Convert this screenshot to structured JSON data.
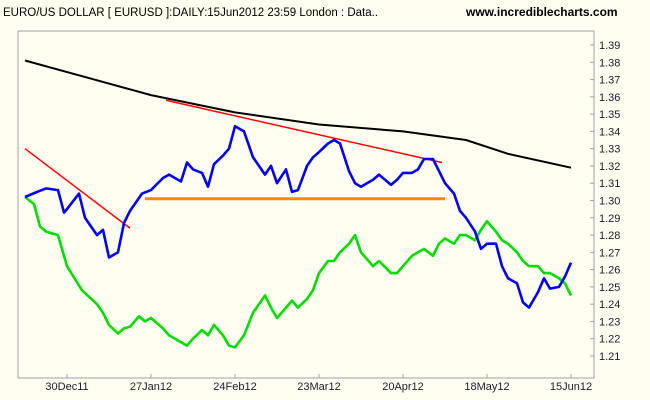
{
  "header": {
    "title": "EURO/US DOLLAR [ EURUSD ]:DAILY:15Jun2012 23:59 London : Data..",
    "source": "www.incrediblecharts.com"
  },
  "chart_data": {
    "type": "line",
    "title": "EURO/US DOLLAR [ EURUSD ]:DAILY:15Jun2012 23:59 London : Data..",
    "x_range": [
      "2011-12-16",
      "2012-06-15"
    ],
    "ylim": [
      1.2,
      1.4
    ],
    "y_ticks": [
      "1.39",
      "1.38",
      "1.37",
      "1.36",
      "1.35",
      "1.34",
      "1.33",
      "1.32",
      "1.31",
      "1.30",
      "1.29",
      "1.28",
      "1.27",
      "1.26",
      "1.25",
      "1.24",
      "1.23",
      "1.22",
      "1.21"
    ],
    "x_ticks": [
      {
        "label": "30Dec11",
        "date": "2011-12-30"
      },
      {
        "label": "27Jan12",
        "date": "2012-01-27"
      },
      {
        "label": "24Feb12",
        "date": "2012-02-24"
      },
      {
        "label": "23Mar12",
        "date": "2012-03-23"
      },
      {
        "label": "20Apr12",
        "date": "2012-04-20"
      },
      {
        "label": "18May12",
        "date": "2012-05-18"
      },
      {
        "label": "15Jun12",
        "date": "2012-06-15"
      }
    ],
    "grid": false,
    "series": [
      {
        "color": "#0000ff",
        "points": [
          [
            "2011-12-16",
            1.302
          ],
          [
            "2011-12-20",
            1.305
          ],
          [
            "2011-12-23",
            1.307
          ],
          [
            "2011-12-27",
            1.306
          ],
          [
            "2011-12-29",
            1.293
          ],
          [
            "2011-12-30",
            1.295
          ],
          [
            "2012-01-03",
            1.304
          ],
          [
            "2012-01-05",
            1.29
          ],
          [
            "2012-01-09",
            1.28
          ],
          [
            "2012-01-11",
            1.283
          ],
          [
            "2012-01-13",
            1.267
          ],
          [
            "2012-01-16",
            1.27
          ],
          [
            "2012-01-18",
            1.287
          ],
          [
            "2012-01-20",
            1.294
          ],
          [
            "2012-01-24",
            1.304
          ],
          [
            "2012-01-27",
            1.306
          ],
          [
            "2012-01-31",
            1.313
          ],
          [
            "2012-02-02",
            1.315
          ],
          [
            "2012-02-06",
            1.311
          ],
          [
            "2012-02-08",
            1.322
          ],
          [
            "2012-02-10",
            1.318
          ],
          [
            "2012-02-13",
            1.316
          ],
          [
            "2012-02-15",
            1.308
          ],
          [
            "2012-02-17",
            1.321
          ],
          [
            "2012-02-20",
            1.326
          ],
          [
            "2012-02-22",
            1.33
          ],
          [
            "2012-02-24",
            1.343
          ],
          [
            "2012-02-27",
            1.34
          ],
          [
            "2012-03-01",
            1.325
          ],
          [
            "2012-03-05",
            1.315
          ],
          [
            "2012-03-07",
            1.32
          ],
          [
            "2012-03-09",
            1.31
          ],
          [
            "2012-03-12",
            1.318
          ],
          [
            "2012-03-14",
            1.305
          ],
          [
            "2012-03-16",
            1.306
          ],
          [
            "2012-03-19",
            1.32
          ],
          [
            "2012-03-21",
            1.325
          ],
          [
            "2012-03-23",
            1.328
          ],
          [
            "2012-03-26",
            1.333
          ],
          [
            "2012-03-28",
            1.335
          ],
          [
            "2012-03-30",
            1.333
          ],
          [
            "2012-04-02",
            1.317
          ],
          [
            "2012-04-04",
            1.31
          ],
          [
            "2012-04-06",
            1.308
          ],
          [
            "2012-04-10",
            1.312
          ],
          [
            "2012-04-12",
            1.315
          ],
          [
            "2012-04-16",
            1.309
          ],
          [
            "2012-04-18",
            1.312
          ],
          [
            "2012-04-20",
            1.316
          ],
          [
            "2012-04-23",
            1.316
          ],
          [
            "2012-04-25",
            1.318
          ],
          [
            "2012-04-27",
            1.324
          ],
          [
            "2012-04-30",
            1.324
          ],
          [
            "2012-05-02",
            1.317
          ],
          [
            "2012-05-04",
            1.31
          ],
          [
            "2012-05-07",
            1.304
          ],
          [
            "2012-05-09",
            1.294
          ],
          [
            "2012-05-11",
            1.29
          ],
          [
            "2012-05-14",
            1.282
          ],
          [
            "2012-05-16",
            1.272
          ],
          [
            "2012-05-18",
            1.275
          ],
          [
            "2012-05-21",
            1.275
          ],
          [
            "2012-05-23",
            1.262
          ],
          [
            "2012-05-25",
            1.255
          ],
          [
            "2012-05-28",
            1.252
          ],
          [
            "2012-05-30",
            1.241
          ],
          [
            "2012-06-01",
            1.238
          ],
          [
            "2012-06-04",
            1.247
          ],
          [
            "2012-06-06",
            1.255
          ],
          [
            "2012-06-08",
            1.249
          ],
          [
            "2012-06-11",
            1.25
          ],
          [
            "2012-06-13",
            1.256
          ],
          [
            "2012-06-15",
            1.264
          ]
        ]
      },
      {
        "color": "#00dd00",
        "points": [
          [
            "2011-12-16",
            1.302
          ],
          [
            "2011-12-19",
            1.298
          ],
          [
            "2011-12-21",
            1.285
          ],
          [
            "2011-12-23",
            1.282
          ],
          [
            "2011-12-27",
            1.28
          ],
          [
            "2011-12-30",
            1.262
          ],
          [
            "2012-01-04",
            1.248
          ],
          [
            "2012-01-09",
            1.24
          ],
          [
            "2012-01-11",
            1.235
          ],
          [
            "2012-01-13",
            1.228
          ],
          [
            "2012-01-16",
            1.223
          ],
          [
            "2012-01-18",
            1.226
          ],
          [
            "2012-01-20",
            1.227
          ],
          [
            "2012-01-23",
            1.233
          ],
          [
            "2012-01-25",
            1.23
          ],
          [
            "2012-01-27",
            1.232
          ],
          [
            "2012-01-31",
            1.226
          ],
          [
            "2012-02-02",
            1.222
          ],
          [
            "2012-02-06",
            1.218
          ],
          [
            "2012-02-08",
            1.216
          ],
          [
            "2012-02-10",
            1.22
          ],
          [
            "2012-02-13",
            1.225
          ],
          [
            "2012-02-15",
            1.222
          ],
          [
            "2012-02-17",
            1.228
          ],
          [
            "2012-02-20",
            1.222
          ],
          [
            "2012-02-22",
            1.216
          ],
          [
            "2012-02-24",
            1.215
          ],
          [
            "2012-02-27",
            1.222
          ],
          [
            "2012-03-01",
            1.235
          ],
          [
            "2012-03-05",
            1.245
          ],
          [
            "2012-03-07",
            1.238
          ],
          [
            "2012-03-09",
            1.232
          ],
          [
            "2012-03-12",
            1.238
          ],
          [
            "2012-03-14",
            1.242
          ],
          [
            "2012-03-16",
            1.238
          ],
          [
            "2012-03-19",
            1.243
          ],
          [
            "2012-03-21",
            1.248
          ],
          [
            "2012-03-23",
            1.258
          ],
          [
            "2012-03-26",
            1.265
          ],
          [
            "2012-03-28",
            1.265
          ],
          [
            "2012-03-30",
            1.27
          ],
          [
            "2012-04-02",
            1.275
          ],
          [
            "2012-04-04",
            1.28
          ],
          [
            "2012-04-06",
            1.27
          ],
          [
            "2012-04-10",
            1.262
          ],
          [
            "2012-04-12",
            1.265
          ],
          [
            "2012-04-16",
            1.258
          ],
          [
            "2012-04-18",
            1.258
          ],
          [
            "2012-04-20",
            1.262
          ],
          [
            "2012-04-23",
            1.268
          ],
          [
            "2012-04-25",
            1.27
          ],
          [
            "2012-04-27",
            1.272
          ],
          [
            "2012-04-30",
            1.268
          ],
          [
            "2012-05-02",
            1.275
          ],
          [
            "2012-05-04",
            1.278
          ],
          [
            "2012-05-07",
            1.275
          ],
          [
            "2012-05-09",
            1.28
          ],
          [
            "2012-05-11",
            1.28
          ],
          [
            "2012-05-14",
            1.277
          ],
          [
            "2012-05-16",
            1.283
          ],
          [
            "2012-05-18",
            1.288
          ],
          [
            "2012-05-21",
            1.282
          ],
          [
            "2012-05-23",
            1.277
          ],
          [
            "2012-05-25",
            1.275
          ],
          [
            "2012-05-28",
            1.27
          ],
          [
            "2012-05-30",
            1.265
          ],
          [
            "2012-06-01",
            1.262
          ],
          [
            "2012-06-04",
            1.262
          ],
          [
            "2012-06-06",
            1.258
          ],
          [
            "2012-06-08",
            1.258
          ],
          [
            "2012-06-11",
            1.255
          ],
          [
            "2012-06-13",
            1.252
          ],
          [
            "2012-06-15",
            1.245
          ]
        ]
      },
      {
        "color": "#000000",
        "points": [
          [
            "2011-12-16",
            1.381
          ],
          [
            "2012-01-06",
            1.371
          ],
          [
            "2012-01-27",
            1.361
          ],
          [
            "2012-02-24",
            1.351
          ],
          [
            "2012-03-23",
            1.344
          ],
          [
            "2012-04-20",
            1.34
          ],
          [
            "2012-05-11",
            1.335
          ],
          [
            "2012-05-25",
            1.327
          ],
          [
            "2012-06-15",
            1.319
          ]
        ]
      }
    ],
    "annotations": [
      {
        "type": "trendline",
        "color": "#ff0000",
        "from": [
          "2011-12-16",
          1.33
        ],
        "to": [
          "2012-01-20",
          1.284
        ]
      },
      {
        "type": "trendline",
        "color": "#ff0000",
        "from": [
          "2012-02-01",
          1.358
        ],
        "to": [
          "2012-05-03",
          1.322
        ]
      },
      {
        "type": "support",
        "color": "#ff8800",
        "from": [
          "2012-01-25",
          1.301
        ],
        "to": [
          "2012-05-04",
          1.301
        ]
      }
    ]
  }
}
